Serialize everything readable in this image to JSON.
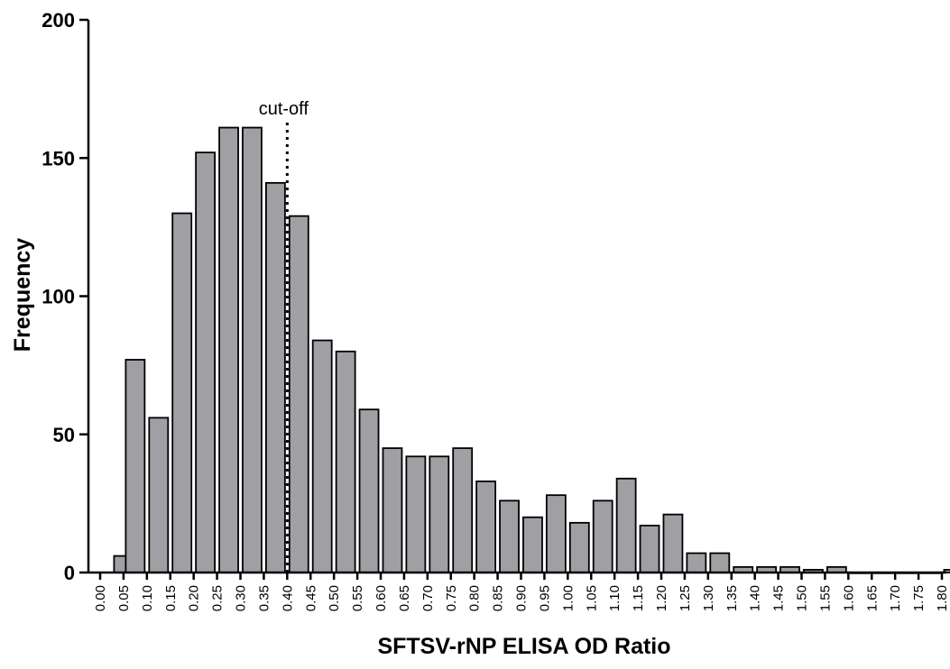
{
  "chart_data": {
    "type": "bar",
    "title": "",
    "xlabel": "SFTSV-rNP ELISA OD Ratio",
    "ylabel": "Frequency",
    "ylim": [
      0,
      200
    ],
    "yticks": [
      0,
      50,
      100,
      150,
      200
    ],
    "categories": [
      "0.00",
      "0.05",
      "0.10",
      "0.15",
      "0.20",
      "0.25",
      "0.30",
      "0.35",
      "0.40",
      "0.45",
      "0.50",
      "0.55",
      "0.60",
      "0.65",
      "0.70",
      "0.75",
      "0.80",
      "0.85",
      "0.90",
      "0.95",
      "1.00",
      "1.05",
      "1.10",
      "1.15",
      "1.20",
      "1.25",
      "1.30",
      "1.35",
      "1.40",
      "1.45",
      "1.50",
      "1.55",
      "1.60",
      "1.65",
      "1.70",
      "1.75",
      "1.80"
    ],
    "bins": [
      {
        "x": 0.05,
        "value": 6
      },
      {
        "x": 0.075,
        "value": 77
      },
      {
        "x": 0.125,
        "value": 56
      },
      {
        "x": 0.175,
        "value": 130
      },
      {
        "x": 0.225,
        "value": 152
      },
      {
        "x": 0.275,
        "value": 161
      },
      {
        "x": 0.325,
        "value": 161
      },
      {
        "x": 0.375,
        "value": 141
      },
      {
        "x": 0.425,
        "value": 129
      },
      {
        "x": 0.475,
        "value": 84
      },
      {
        "x": 0.525,
        "value": 80
      },
      {
        "x": 0.575,
        "value": 59
      },
      {
        "x": 0.625,
        "value": 45
      },
      {
        "x": 0.675,
        "value": 42
      },
      {
        "x": 0.725,
        "value": 42
      },
      {
        "x": 0.775,
        "value": 45
      },
      {
        "x": 0.825,
        "value": 33
      },
      {
        "x": 0.875,
        "value": 26
      },
      {
        "x": 0.925,
        "value": 20
      },
      {
        "x": 0.975,
        "value": 28
      },
      {
        "x": 1.025,
        "value": 18
      },
      {
        "x": 1.075,
        "value": 26
      },
      {
        "x": 1.125,
        "value": 34
      },
      {
        "x": 1.175,
        "value": 17
      },
      {
        "x": 1.225,
        "value": 21
      },
      {
        "x": 1.275,
        "value": 7
      },
      {
        "x": 1.325,
        "value": 7
      },
      {
        "x": 1.375,
        "value": 2
      },
      {
        "x": 1.425,
        "value": 2
      },
      {
        "x": 1.475,
        "value": 2
      },
      {
        "x": 1.525,
        "value": 1
      },
      {
        "x": 1.575,
        "value": 2
      },
      {
        "x": 1.625,
        "value": 0
      },
      {
        "x": 1.675,
        "value": 0
      },
      {
        "x": 1.725,
        "value": 0
      },
      {
        "x": 1.775,
        "value": 0
      },
      {
        "x": 1.825,
        "value": 1
      }
    ],
    "bar_color": "#a0a0a4",
    "cutoff": {
      "label": "cut-off",
      "x": 0.4
    },
    "grid": false,
    "legend": "none"
  }
}
